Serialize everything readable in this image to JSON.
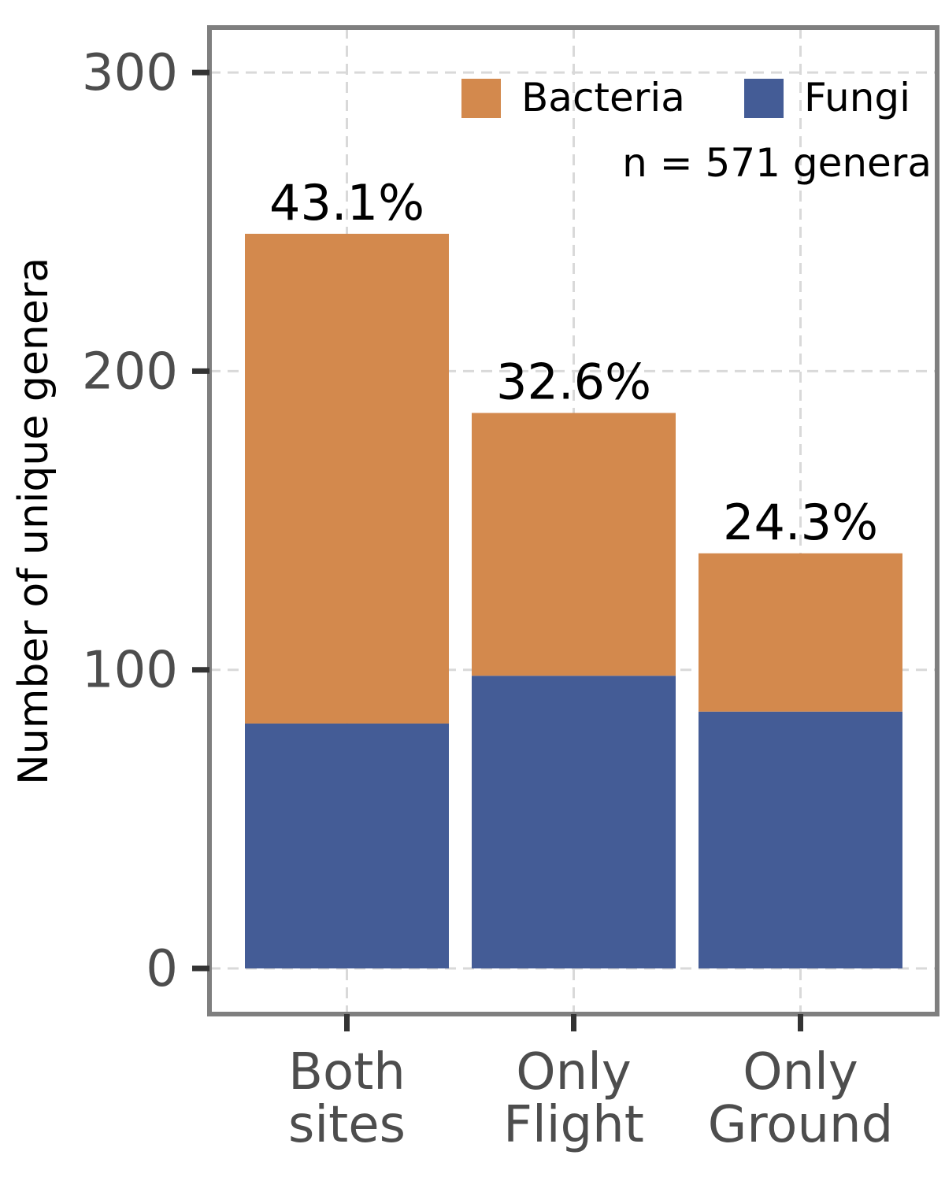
{
  "chart_data": {
    "type": "bar",
    "stacked": true,
    "categories": [
      [
        "Both",
        "sites"
      ],
      [
        "Only",
        "Flight"
      ],
      [
        "Only",
        "Ground"
      ]
    ],
    "series": [
      {
        "name": "Fungi",
        "values": [
          82,
          98,
          86
        ],
        "color": "#445c96"
      },
      {
        "name": "Bacteria",
        "values": [
          164,
          88,
          53
        ],
        "color": "#d3894d"
      }
    ],
    "bar_labels": [
      "43.1%",
      "32.6%",
      "24.3%"
    ],
    "ylabel": "Number of unique genera",
    "xlabel": "",
    "ylim": [
      -15,
      315
    ],
    "yticks": [
      0,
      100,
      200,
      300
    ],
    "grid": true,
    "legend": {
      "placement": "top-right",
      "entries": [
        "Bacteria",
        "Fungi"
      ],
      "note": "n = 571 genera"
    }
  }
}
